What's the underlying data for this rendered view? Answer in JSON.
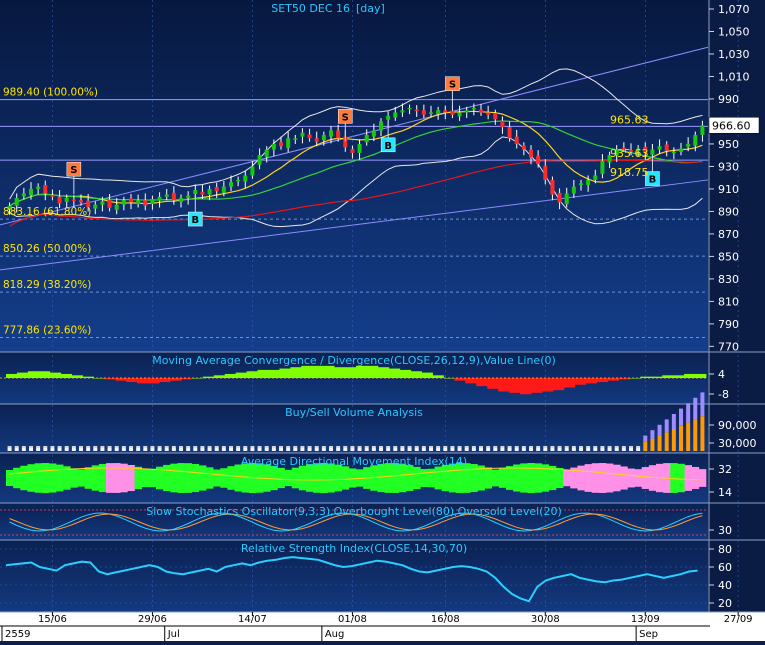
{
  "colors": {
    "background_top": "#07183f",
    "background_bottom": "#123a86",
    "grid": "#2f5fb8",
    "axis_text": "#ffffff",
    "title_text": "#29c8ff",
    "fib_text": "#ffe600",
    "sell_box": "#ff7a3c",
    "buy_box": "#29e3ff",
    "candle_up": "#18c90e",
    "candle_down": "#ff2a2a",
    "channel": "#8c8cff",
    "ma_yellow": "#ffd21e",
    "ma_red": "#e01818",
    "ma_green": "#36d036",
    "bollinger": "#e8e8e8",
    "rsi_line": "#29d0ff",
    "macd_pos": "#7fff00",
    "macd_neg": "#ff1a1a",
    "adx_green": "#22ff22",
    "adx_pink": "#ff90e8",
    "vol_buy": "#ff9a00",
    "vol_sell": "#a08cff"
  },
  "chart_data": [
    {
      "type": "candlestick",
      "title": "SET50 DEC 16",
      "period": "[day]",
      "y_ticks": [
        "1,070",
        "1,050",
        "1,030",
        "1,010",
        "990",
        "970",
        "950",
        "930",
        "910",
        "890",
        "870",
        "850",
        "830",
        "810",
        "790",
        "770"
      ],
      "ylim": [
        765,
        1078
      ],
      "last_price": "966.60",
      "fibonacci_levels": [
        {
          "value": 989.4,
          "label": "989.40 (100.00%)"
        },
        {
          "value": 883.16,
          "label": "883.16 (61.80%)"
        },
        {
          "value": 850.26,
          "label": "850.26 (50.00%)"
        },
        {
          "value": 818.29,
          "label": "818.29 (38.20%)"
        },
        {
          "value": 777.86,
          "label": "777.86 (23.60%)"
        }
      ],
      "annotations": [
        {
          "text": "965.63",
          "value": 965.63
        },
        {
          "text": "935.63",
          "value": 935.63
        },
        {
          "text": "918.75",
          "value": 918.75
        }
      ],
      "signals": [
        {
          "type": "S",
          "index": 9
        },
        {
          "type": "B",
          "index": 26
        },
        {
          "type": "S",
          "index": 47
        },
        {
          "type": "B",
          "index": 53
        },
        {
          "type": "S",
          "index": 62
        },
        {
          "type": "B",
          "index": 90
        }
      ],
      "closes": [
        895,
        902,
        906,
        910,
        912,
        906,
        903,
        897,
        902,
        900,
        898,
        894,
        896,
        899,
        893,
        896,
        900,
        898,
        900,
        895,
        901,
        903,
        905,
        900,
        902,
        904,
        909,
        905,
        910,
        908,
        912,
        916,
        918,
        922,
        930,
        940,
        945,
        950,
        948,
        955,
        955,
        960,
        955,
        952,
        958,
        962,
        955,
        947,
        942,
        950,
        958,
        962,
        970,
        975,
        978,
        980,
        982,
        980,
        976,
        978,
        980,
        978,
        976,
        978,
        980,
        982,
        978,
        976,
        972,
        965,
        955,
        950,
        945,
        938,
        932,
        918,
        905,
        898,
        906,
        912,
        915,
        918,
        922,
        935,
        940,
        945,
        946,
        944,
        946,
        942,
        945,
        948,
        944,
        943,
        946,
        950,
        958,
        966.6
      ],
      "x_labels": [
        "15/06",
        "29/06",
        "14/07",
        "01/08",
        "16/08",
        "30/08",
        "13/09",
        "27/09"
      ],
      "x_label_index": [
        6,
        20,
        34,
        48,
        61,
        75,
        89,
        102
      ],
      "period_labels": [
        "2559",
        "Jul",
        "Aug",
        "Sep"
      ],
      "period_index": [
        0,
        22,
        44,
        88
      ]
    },
    {
      "type": "area",
      "title": "Moving Average Convergence / Divergence(CLOSE,26,12,9),Value Line(0)",
      "y_ticks": [
        "4",
        "-8"
      ],
      "values": [
        3,
        4,
        5,
        5,
        4,
        3,
        2,
        1,
        0,
        -1,
        -2,
        -3,
        -4,
        -4,
        -3,
        -2,
        -1,
        0,
        1,
        2,
        3,
        4,
        5,
        6,
        6,
        7,
        8,
        9,
        9,
        9,
        8,
        8,
        9,
        9,
        8,
        7,
        6,
        5,
        4,
        2,
        0,
        -2,
        -4,
        -6,
        -8,
        -10,
        -11,
        -12,
        -11,
        -10,
        -9,
        -7,
        -5,
        -4,
        -3,
        -2,
        -1,
        0,
        1,
        1,
        2,
        2,
        3,
        3
      ]
    },
    {
      "type": "bar",
      "title": "Buy/Sell Volume Analysis",
      "y_ticks": [
        "90,000",
        "30,000"
      ]
    },
    {
      "type": "area",
      "title": "Average Directional Movement Index(14)",
      "y_ticks": [
        "32",
        "14"
      ]
    },
    {
      "type": "line",
      "title": "Slow Stochastics Oscillator(9,3,3),Overbought Level(80),Oversold Level(20)",
      "y_ticks": [
        "30"
      ]
    },
    {
      "type": "line",
      "title": "Relative Strength Index(CLOSE,14,30,70)",
      "y_ticks": [
        "80",
        "60",
        "40",
        "20"
      ],
      "ylim": [
        10,
        90
      ],
      "values": [
        62,
        63,
        64,
        65,
        60,
        58,
        56,
        62,
        64,
        66,
        65,
        55,
        52,
        54,
        56,
        58,
        60,
        62,
        60,
        55,
        53,
        52,
        54,
        56,
        58,
        55,
        60,
        62,
        64,
        62,
        65,
        67,
        68,
        70,
        71,
        70,
        69,
        68,
        65,
        62,
        60,
        61,
        63,
        65,
        67,
        66,
        64,
        62,
        58,
        55,
        54,
        56,
        58,
        60,
        61,
        60,
        58,
        55,
        48,
        38,
        30,
        25,
        22,
        38,
        45,
        48,
        50,
        52,
        48,
        46,
        44,
        43,
        45,
        46,
        48,
        50,
        52,
        50,
        48,
        50,
        52,
        55,
        56
      ]
    }
  ]
}
